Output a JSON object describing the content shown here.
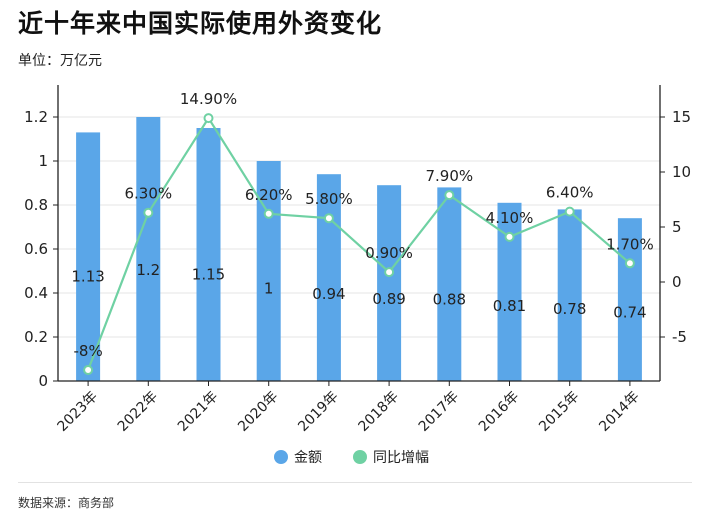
{
  "title": "近十年来中国实际使用外资变化",
  "unit_label": "单位：万亿元",
  "source_label": "数据来源：商务部",
  "colors": {
    "bar": "#5aa6e8",
    "line": "#6fd1a3",
    "axis": "#222222",
    "grid": "#e6e6e6"
  },
  "chart_data": {
    "type": "bar",
    "categories": [
      "2023年",
      "2022年",
      "2021年",
      "2020年",
      "2019年",
      "2018年",
      "2017年",
      "2016年",
      "2015年",
      "2014年"
    ],
    "series": [
      {
        "name": "金额",
        "type": "bar",
        "axis": "left",
        "values": [
          1.13,
          1.2,
          1.15,
          1,
          0.94,
          0.89,
          0.88,
          0.81,
          0.78,
          0.74
        ],
        "labels": [
          "1.13",
          "1.2",
          "1.15",
          "1",
          "0.94",
          "0.89",
          "0.88",
          "0.81",
          "0.78",
          "0.74"
        ]
      },
      {
        "name": "同比增幅",
        "type": "line",
        "axis": "right",
        "values": [
          -8,
          6.3,
          14.9,
          6.2,
          5.8,
          0.9,
          7.9,
          4.1,
          6.4,
          1.7
        ],
        "labels": [
          "-8%",
          "6.30%",
          "14.90%",
          "6.20%",
          "5.80%",
          "0.90%",
          "7.90%",
          "4.10%",
          "6.40%",
          "1.70%"
        ]
      }
    ],
    "y_left": {
      "min": 0,
      "max": 1.3,
      "ticks": [
        0,
        0.2,
        0.4,
        0.6,
        0.8,
        1,
        1.2
      ],
      "tick_labels": [
        "0",
        "0.2",
        "0.4",
        "0.6",
        "0.8",
        "1",
        "1.2"
      ]
    },
    "y_right": {
      "min": -9,
      "max": 17,
      "ticks": [
        -5,
        0,
        5,
        10,
        15
      ],
      "tick_labels": [
        "-5",
        "0",
        "5",
        "10",
        "15"
      ]
    },
    "grid": true,
    "legend": {
      "position": "bottom",
      "entries": [
        "金额",
        "同比增幅"
      ]
    }
  }
}
